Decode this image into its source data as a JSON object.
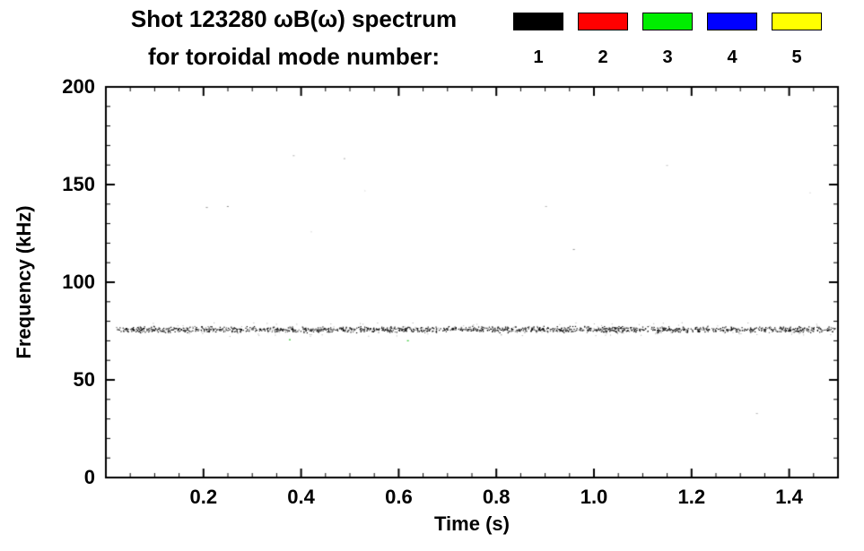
{
  "chart_data": {
    "type": "scatter",
    "title_line1": "Shot 123280 ωB(ω) spectrum",
    "title_line2": "for toroidal mode number:",
    "xlabel": "Time (s)",
    "ylabel": "Frequency (kHz)",
    "xlim": [
      0.0,
      1.5
    ],
    "ylim": [
      0,
      200
    ],
    "xtick_values": [
      0.2,
      0.4,
      0.6,
      0.8,
      1.0,
      1.2,
      1.4
    ],
    "xtick_labels": [
      "0.2",
      "0.4",
      "0.6",
      "0.8",
      "1.0",
      "1.2",
      "1.4"
    ],
    "ytick_values": [
      0,
      50,
      100,
      150,
      200
    ],
    "ytick_labels": [
      "0",
      "50",
      "100",
      "150",
      "200"
    ],
    "x_minor_step": 0.05,
    "y_minor_step": 10,
    "grid": false,
    "legend_position": "top-right",
    "frame_color": "#000000",
    "background": "#ffffff",
    "legend": [
      {
        "label": "1",
        "color": "#000000"
      },
      {
        "label": "2",
        "color": "#ff0000"
      },
      {
        "label": "3",
        "color": "#00ee00"
      },
      {
        "label": "4",
        "color": "#0000ff"
      },
      {
        "label": "5",
        "color": "#ffff00"
      }
    ],
    "band": {
      "mode_number": 1,
      "color": "#000000",
      "f_center_kHz": 76,
      "f_jitter_kHz": 1.1,
      "t_start": 0.02,
      "t_end": 1.493,
      "n_points": 1500
    },
    "sparse_points": [
      {
        "t": 0.205,
        "f": 138.5,
        "color": "#909090",
        "size": 2
      },
      {
        "t": 0.248,
        "f": 139.0,
        "color": "#909090",
        "size": 2
      },
      {
        "t": 0.383,
        "f": 165.0,
        "color": "#b0b0b0",
        "size": 2
      },
      {
        "t": 0.487,
        "f": 163.5,
        "color": "#b0b0b0",
        "size": 2
      },
      {
        "t": 0.42,
        "f": 126.0,
        "color": "#c0c0c0",
        "size": 1
      },
      {
        "t": 0.53,
        "f": 147.0,
        "color": "#c8c8c8",
        "size": 1
      },
      {
        "t": 0.375,
        "f": 70.8,
        "color": "#00bb00",
        "size": 2
      },
      {
        "t": 0.617,
        "f": 70.3,
        "color": "#00bb00",
        "size": 2
      },
      {
        "t": 0.9,
        "f": 139.0,
        "color": "#b0b0b0",
        "size": 2
      },
      {
        "t": 0.957,
        "f": 117.0,
        "color": "#909090",
        "size": 2
      },
      {
        "t": 1.148,
        "f": 160.0,
        "color": "#c0c0c0",
        "size": 2
      },
      {
        "t": 1.332,
        "f": 33.0,
        "color": "#b0b0b0",
        "size": 2
      },
      {
        "t": 1.442,
        "f": 146.0,
        "color": "#c0c0c0",
        "size": 1
      }
    ]
  }
}
